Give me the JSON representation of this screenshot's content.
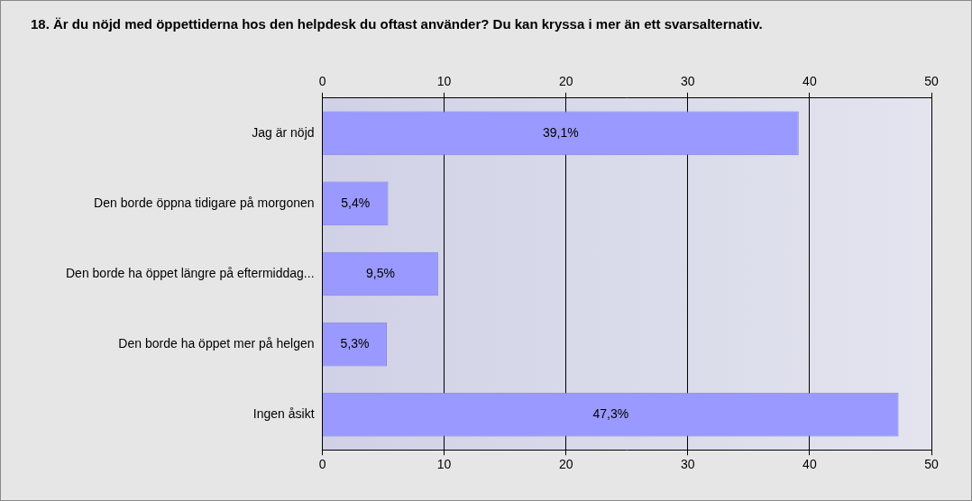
{
  "chart_data": {
    "type": "bar",
    "orientation": "horizontal",
    "title": "18. Är du nöjd med öppettiderna hos den helpdesk du oftast använder? Du kan kryssa i mer än ett svarsalternativ.",
    "categories": [
      "Jag är nöjd",
      "Den borde öppna tidigare på morgonen",
      "Den borde ha öppet längre på eftermiddag...",
      "Den borde ha öppet mer på helgen",
      "Ingen åsikt"
    ],
    "values": [
      39.1,
      5.4,
      9.5,
      5.3,
      47.3
    ],
    "value_labels": [
      "39,1%",
      "5,4%",
      "9,5%",
      "5,3%",
      "47,3%"
    ],
    "data_labels": true,
    "color": "#9999ff",
    "xlim": [
      0,
      50
    ],
    "xticks": [
      0,
      10,
      20,
      30,
      40,
      50
    ],
    "grid": true
  }
}
